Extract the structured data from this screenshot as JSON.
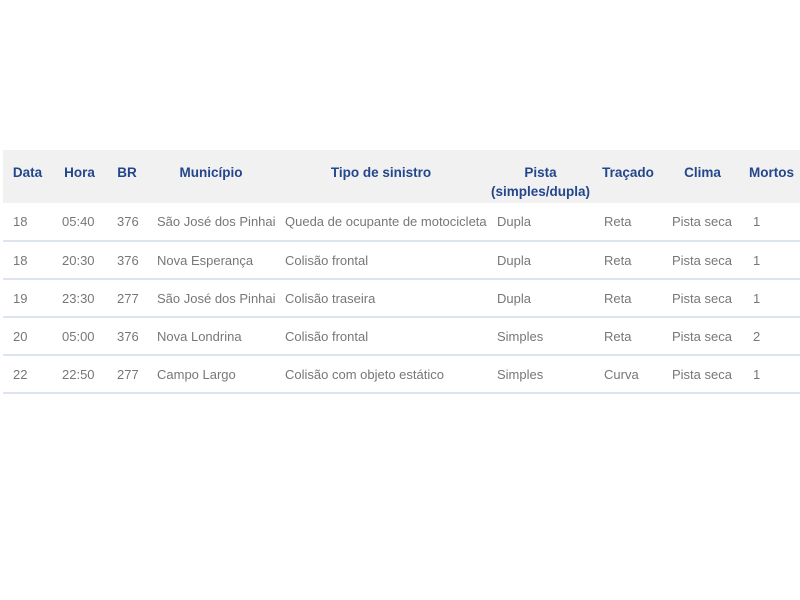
{
  "page": {
    "background_color": "#ffffff"
  },
  "table": {
    "colors": {
      "header_bg": "#f1f1f2",
      "header_text": "#24468b",
      "body_text": "#75777a",
      "row_border": "#dde4f0"
    },
    "columns": [
      {
        "label": "Data"
      },
      {
        "label": "Hora"
      },
      {
        "label": "BR"
      },
      {
        "label": "Município"
      },
      {
        "label": "Tipo de sinistro"
      },
      {
        "label": "Pista",
        "label_line2": "(simples/dupla)"
      },
      {
        "label": "Traçado"
      },
      {
        "label": "Clima"
      },
      {
        "label": "Mortos"
      }
    ],
    "rows": [
      [
        "18",
        "05:40",
        "376",
        "São José dos Pinhais",
        "Queda de ocupante de motocicleta",
        "Dupla",
        "Reta",
        "Pista seca",
        "1"
      ],
      [
        "18",
        "20:30",
        "376",
        "Nova Esperança",
        "Colisão frontal",
        "Dupla",
        "Reta",
        "Pista seca",
        "1"
      ],
      [
        "19",
        "23:30",
        "277",
        "São José dos Pinhais",
        "Colisão traseira",
        "Dupla",
        "Reta",
        "Pista seca",
        "1"
      ],
      [
        "20",
        "05:00",
        "376",
        "Nova Londrina",
        "Colisão frontal",
        "Simples",
        "Reta",
        "Pista seca",
        "2"
      ],
      [
        "22",
        "22:50",
        "277",
        "Campo Largo",
        "Colisão com objeto estático",
        "Simples",
        "Curva",
        "Pista seca",
        "1"
      ]
    ]
  }
}
